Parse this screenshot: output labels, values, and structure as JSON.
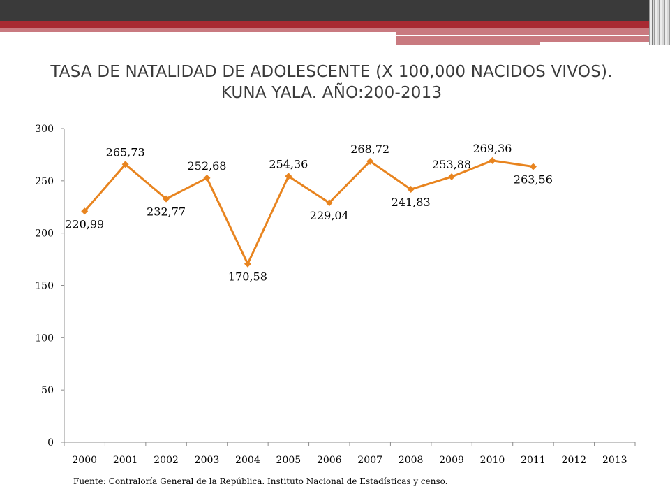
{
  "title_line1": "TASA DE NATALIDAD DE ADOLESCENTE (X 100,000 NACIDOS VIVOS).",
  "title_line2": "KUNA YALA. AÑO:200-2013",
  "source": "Fuente: Contraloría General de la República. Instituto Nacional de Estadísticas y censo.",
  "colors": {
    "line": "#e8841f",
    "header_dark": "#3a3a3a",
    "header_red": "#a82a32",
    "header_pink": "#c97a80"
  },
  "chart_data": {
    "type": "line",
    "title": "TASA DE NATALIDAD DE ADOLESCENTE (X 100,000 NACIDOS VIVOS). KUNA YALA. AÑO:200-2013",
    "categories": [
      "2000",
      "2001",
      "2002",
      "2003",
      "2004",
      "2005",
      "2006",
      "2007",
      "2008",
      "2009",
      "2010",
      "2011",
      "2012",
      "2013"
    ],
    "series": [
      {
        "values": [
          220.99,
          265.73,
          232.77,
          252.68,
          170.58,
          254.36,
          229.04,
          268.72,
          241.83,
          253.88,
          269.36,
          263.56,
          null,
          null
        ],
        "labels": [
          "220,99",
          "265,73",
          "232,77",
          "252,68",
          "170,58",
          "254,36",
          "229,04",
          "268,72",
          "241,83",
          "253,88",
          "269,36",
          "263,56",
          null,
          null
        ],
        "label_positions": [
          "below",
          "above",
          "below",
          "above",
          "below",
          "above",
          "below",
          "above",
          "below",
          "above",
          "above",
          "below",
          null,
          null
        ]
      }
    ],
    "yticks": [
      "0",
      "50",
      "100",
      "150",
      "200",
      "250",
      "300"
    ],
    "ylim": [
      0,
      300
    ],
    "xlabel": "",
    "ylabel": "",
    "grid": false,
    "legend": "none",
    "marker": "diamond"
  }
}
